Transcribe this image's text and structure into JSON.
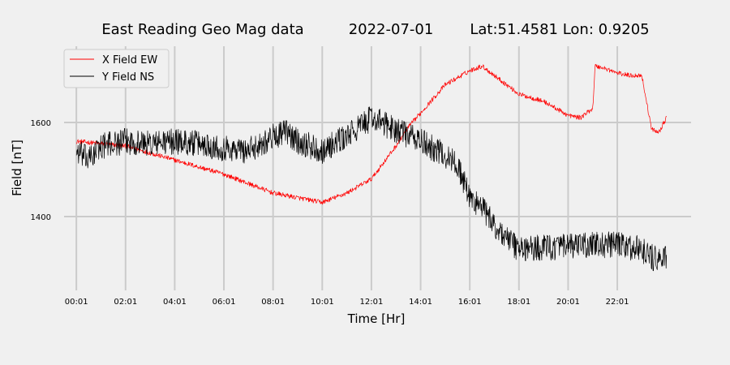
{
  "colors": {
    "background": "#f0f0f0",
    "grid": "#cbcbcb",
    "x_series": "#ff0000",
    "y_series": "#000000"
  },
  "chart_data": {
    "type": "line",
    "title_parts": [
      "East Reading Geo Mag data",
      "2022-07-01",
      "Lat:51.4581  Lon: 0.9205"
    ],
    "xlabel": "Time  [Hr]",
    "ylabel": "Field  [nT]",
    "xlim": [
      -0.5,
      25.0
    ],
    "ylim": [
      1243,
      1762
    ],
    "x_ticks": [
      0,
      2,
      4,
      6,
      8,
      10,
      12,
      14,
      16,
      18,
      20,
      22
    ],
    "x_tick_labels": [
      "00:01",
      "02:01",
      "04:01",
      "06:01",
      "08:01",
      "10:01",
      "12:01",
      "14:01",
      "16:01",
      "18:01",
      "20:01",
      "22:01"
    ],
    "y_ticks": [
      1400,
      1600
    ],
    "grid": true,
    "legend_position": "top-left",
    "series": [
      {
        "name": "X Field EW",
        "color": "#ff0000",
        "noise": 5,
        "x": [
          0,
          1,
          2,
          3,
          4,
          5,
          6,
          7,
          8,
          9,
          10,
          11,
          12,
          13,
          13.5,
          14,
          15,
          16,
          16.5,
          17,
          18,
          19,
          20,
          20.5,
          21,
          21.1,
          21.5,
          22,
          22.5,
          23,
          23.2,
          23.4,
          23.7,
          24
        ],
        "y": [
          1560,
          1555,
          1550,
          1535,
          1520,
          1505,
          1490,
          1470,
          1450,
          1440,
          1430,
          1450,
          1480,
          1550,
          1590,
          1620,
          1680,
          1710,
          1720,
          1700,
          1660,
          1645,
          1615,
          1610,
          1630,
          1720,
          1715,
          1705,
          1700,
          1700,
          1640,
          1585,
          1580,
          1610
        ]
      },
      {
        "name": "Y Field NS",
        "color": "#000000",
        "noise": 28,
        "x": [
          0,
          0.5,
          1,
          2,
          3,
          4,
          5,
          6,
          7,
          8,
          8.5,
          9,
          10,
          11,
          12,
          13,
          14,
          15,
          15.5,
          16,
          16.5,
          17,
          18,
          19,
          20,
          21,
          22,
          23,
          23.5,
          24
        ],
        "y": [
          1540,
          1520,
          1550,
          1560,
          1555,
          1560,
          1555,
          1545,
          1540,
          1570,
          1580,
          1560,
          1540,
          1570,
          1610,
          1585,
          1560,
          1530,
          1510,
          1440,
          1420,
          1380,
          1330,
          1335,
          1335,
          1340,
          1340,
          1330,
          1310,
          1310
        ]
      }
    ]
  }
}
